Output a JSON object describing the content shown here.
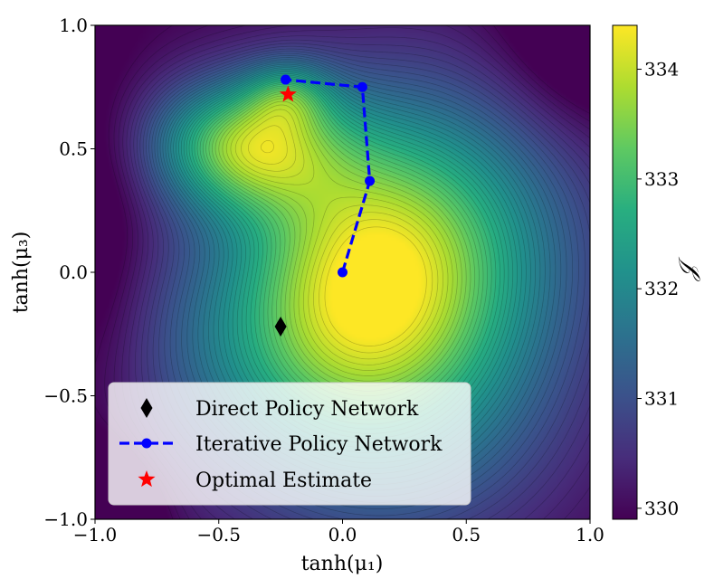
{
  "chart_data": {
    "type": "contour",
    "xlabel": "tanh(μ₁)",
    "ylabel": "tanh(μ₃)",
    "colorbar_label": "𝒥",
    "xlim": [
      -1.0,
      1.0
    ],
    "ylim": [
      -1.0,
      1.0
    ],
    "clim": [
      329.9,
      334.4
    ],
    "x_ticks": [
      {
        "value": -1.0,
        "label": "−1.0"
      },
      {
        "value": -0.5,
        "label": "−0.5"
      },
      {
        "value": 0.0,
        "label": "0.0"
      },
      {
        "value": 0.5,
        "label": "0.5"
      },
      {
        "value": 1.0,
        "label": "1.0"
      }
    ],
    "y_ticks": [
      {
        "value": -1.0,
        "label": "−1.0"
      },
      {
        "value": -0.5,
        "label": "−0.5"
      },
      {
        "value": 0.0,
        "label": "0.0"
      },
      {
        "value": 0.5,
        "label": "0.5"
      },
      {
        "value": 1.0,
        "label": "1.0"
      }
    ],
    "colorbar_ticks": [
      {
        "value": 330,
        "label": "330"
      },
      {
        "value": 331,
        "label": "331"
      },
      {
        "value": 332,
        "label": "332"
      },
      {
        "value": 333,
        "label": "333"
      },
      {
        "value": 334,
        "label": "334"
      }
    ],
    "series": [
      {
        "name": "Direct Policy Network",
        "marker": "diamond",
        "color": "#000000",
        "points": [
          {
            "x": -0.25,
            "y": -0.22
          }
        ]
      },
      {
        "name": "Iterative Policy Network",
        "marker": "circle",
        "line": "dashed",
        "color": "#0000ff",
        "points": [
          {
            "x": 0.0,
            "y": 0.0
          },
          {
            "x": 0.11,
            "y": 0.37
          },
          {
            "x": 0.08,
            "y": 0.75
          },
          {
            "x": -0.23,
            "y": 0.78
          }
        ]
      },
      {
        "name": "Optimal Estimate",
        "marker": "star",
        "color": "#ff0000",
        "points": [
          {
            "x": -0.22,
            "y": 0.72
          }
        ]
      }
    ],
    "legend": {
      "position": "lower-left",
      "entries": [
        "Direct Policy Network",
        "Iterative Policy Network",
        "Optimal Estimate"
      ]
    }
  }
}
